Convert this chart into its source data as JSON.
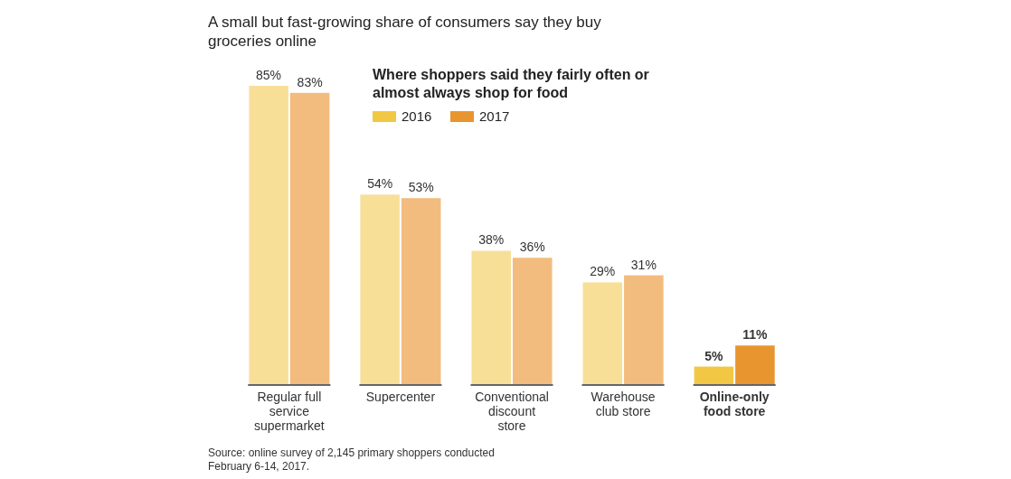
{
  "chart_data": {
    "type": "bar",
    "title": "A small but fast-growing share of consumers say they buy groceries online",
    "subtitle": "Where shoppers said they fairly often or almost always shop for food",
    "categories": [
      "Regular full service supermarket",
      "Supercenter",
      "Conventional discount store",
      "Warehouse club store",
      "Online-only food store"
    ],
    "series": [
      {
        "name": "2016",
        "color": "#f2c744",
        "colors": [
          "#f8df98",
          "#f8df98",
          "#f8df98",
          "#f8df98",
          "#f2c744"
        ],
        "values": [
          85,
          54,
          38,
          29,
          5
        ],
        "value_labels": [
          "85%",
          "54%",
          "38%",
          "29%",
          "5%"
        ]
      },
      {
        "name": "2017",
        "color": "#e8952f",
        "colors": [
          "#f2bc7e",
          "#f2bc7e",
          "#f2bc7e",
          "#f2bc7e",
          "#e8952f"
        ],
        "values": [
          83,
          53,
          36,
          31,
          11
        ],
        "value_labels": [
          "83%",
          "53%",
          "36%",
          "31%",
          "11%"
        ]
      }
    ],
    "legend": "top",
    "grid": false,
    "annotations": [
      "Source: online survey of 2,145 primary shoppers conducted February 6-14, 2017."
    ]
  }
}
